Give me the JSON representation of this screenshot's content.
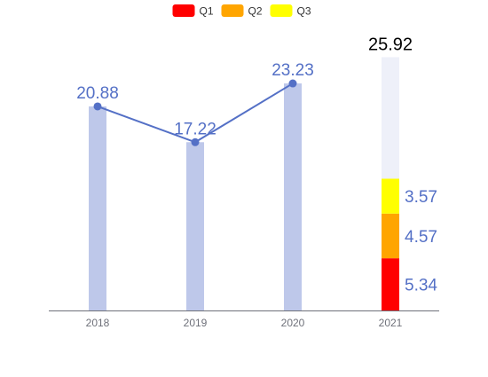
{
  "chart_data": {
    "type": "bar",
    "categories": [
      "2018",
      "2019",
      "2020",
      "2021"
    ],
    "legend": {
      "position": "top-center",
      "items": [
        {
          "label": "Q1",
          "color": "#ff0000"
        },
        {
          "label": "Q2",
          "color": "#ffa500"
        },
        {
          "label": "Q3",
          "color": "#ffff00"
        }
      ]
    },
    "bars": [
      {
        "category": "2018",
        "value": 20.88
      },
      {
        "category": "2019",
        "value": 17.22
      },
      {
        "category": "2020",
        "value": 23.23
      }
    ],
    "line": {
      "values": [
        20.88,
        17.22,
        23.23
      ],
      "labels": [
        "20.88",
        "17.22",
        "23.23"
      ]
    },
    "stacked_bar_2021": {
      "category": "2021",
      "total": 25.92,
      "total_label": "25.92",
      "segments": [
        {
          "series": "Q1",
          "value": 5.34,
          "label": "5.34"
        },
        {
          "series": "Q2",
          "value": 4.57,
          "label": "4.57"
        },
        {
          "series": "Q3",
          "value": 3.57,
          "label": "3.57"
        }
      ]
    },
    "ylim": [
      0,
      28.5
    ],
    "grid": false,
    "colors": {
      "bar": "#bec8ea",
      "line": "#5470c6",
      "value_label": "#5470c6",
      "remaining_bg": "#eef0f9",
      "axis": "#6e7079",
      "tick_label": "#6e7079",
      "total_label": "#000000"
    }
  }
}
